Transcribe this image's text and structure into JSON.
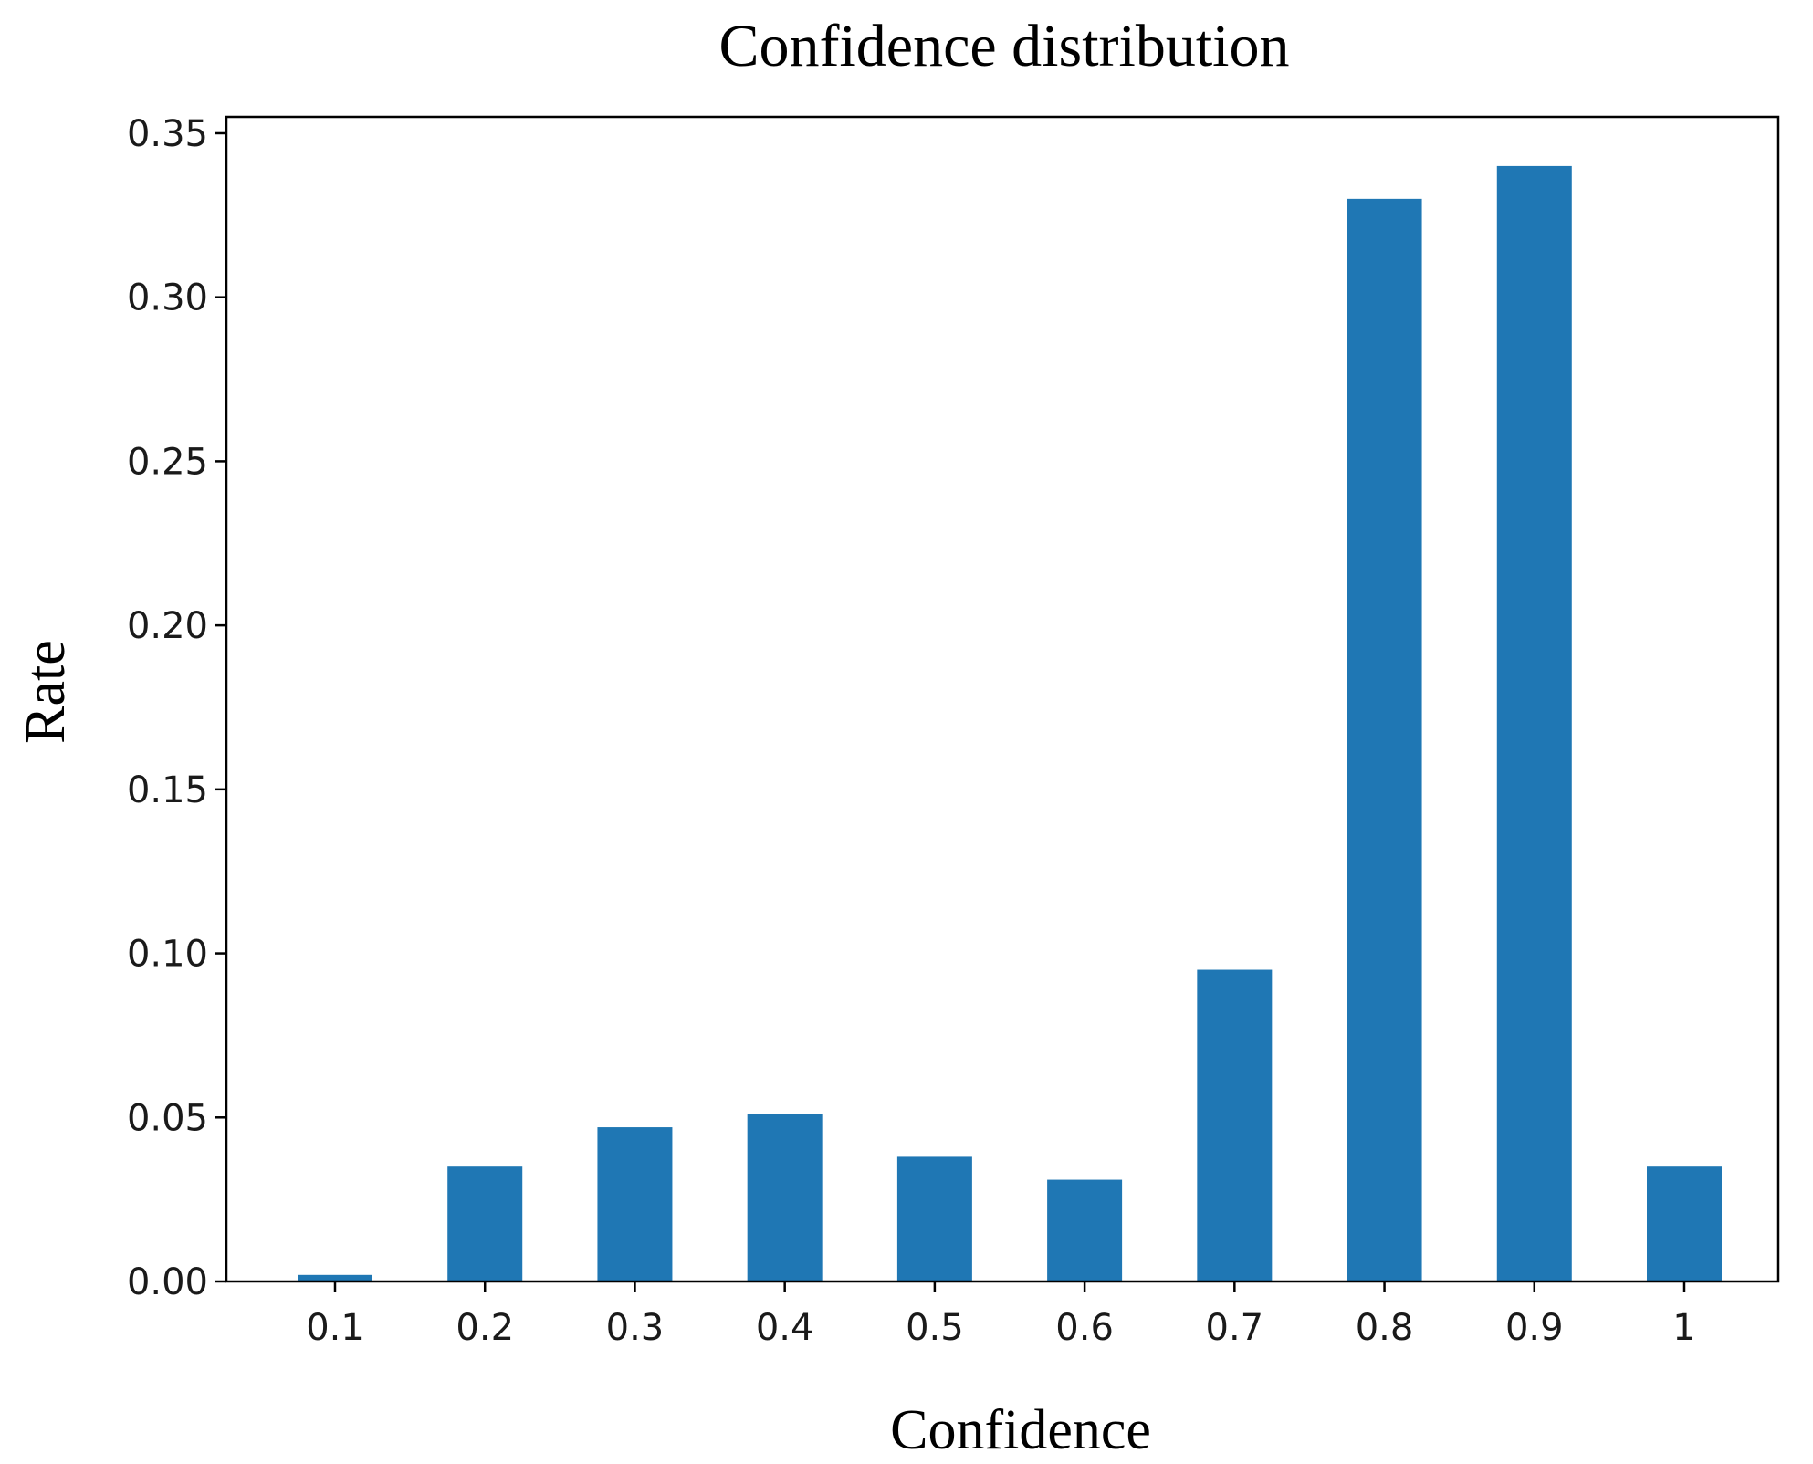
{
  "chart_data": {
    "type": "bar",
    "title": "Confidence distribution",
    "xlabel": "Confidence",
    "ylabel": "Rate",
    "categories": [
      "0.1",
      "0.2",
      "0.3",
      "0.4",
      "0.5",
      "0.6",
      "0.7",
      "0.8",
      "0.9",
      "1"
    ],
    "values": [
      0.002,
      0.035,
      0.047,
      0.051,
      0.038,
      0.031,
      0.095,
      0.33,
      0.34,
      0.035
    ],
    "ylim": [
      0,
      0.355
    ],
    "yticks": [
      "0.00",
      "0.05",
      "0.10",
      "0.15",
      "0.20",
      "0.25",
      "0.30",
      "0.35"
    ],
    "ytick_values": [
      0,
      0.05,
      0.1,
      0.15,
      0.2,
      0.25,
      0.3,
      0.35
    ],
    "bar_color": "#1f77b4",
    "grid": false
  }
}
